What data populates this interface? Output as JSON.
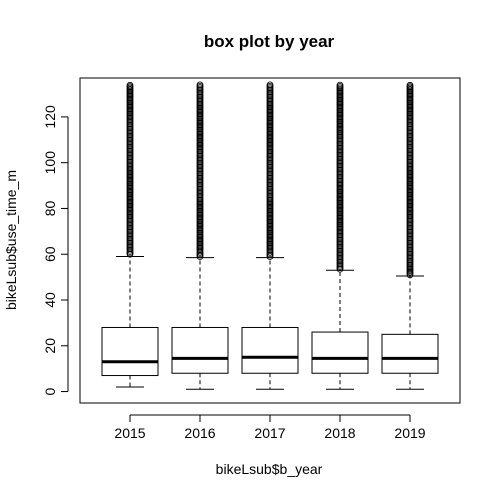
{
  "chart_data": {
    "type": "boxplot",
    "title": "box plot by year",
    "xlabel": "bikeLsub$b_year",
    "ylabel": "bikeLsub$use_time_m",
    "categories": [
      "2015",
      "2016",
      "2017",
      "2018",
      "2019"
    ],
    "ylim": [
      -5,
      137
    ],
    "yticks": [
      "0",
      "20",
      "40",
      "60",
      "80",
      "100",
      "120"
    ],
    "boxes": [
      {
        "category": "2015",
        "lower_whisker": 2,
        "q1": 7,
        "median": 13,
        "q3": 28,
        "upper_whisker": 59,
        "outliers_range": [
          60,
          134
        ]
      },
      {
        "category": "2016",
        "lower_whisker": 1,
        "q1": 8,
        "median": 14.5,
        "q3": 28,
        "upper_whisker": 58.5,
        "outliers_range": [
          59,
          134
        ]
      },
      {
        "category": "2017",
        "lower_whisker": 1,
        "q1": 8,
        "median": 15,
        "q3": 28,
        "upper_whisker": 58.5,
        "outliers_range": [
          59,
          134
        ]
      },
      {
        "category": "2018",
        "lower_whisker": 1,
        "q1": 8,
        "median": 14.5,
        "q3": 26,
        "upper_whisker": 53,
        "outliers_range": [
          53.5,
          134
        ]
      },
      {
        "category": "2019",
        "lower_whisker": 1,
        "q1": 8,
        "median": 14.5,
        "q3": 25,
        "upper_whisker": 50.5,
        "outliers_range": [
          51,
          134
        ]
      }
    ],
    "grid": false,
    "legend": "none"
  }
}
